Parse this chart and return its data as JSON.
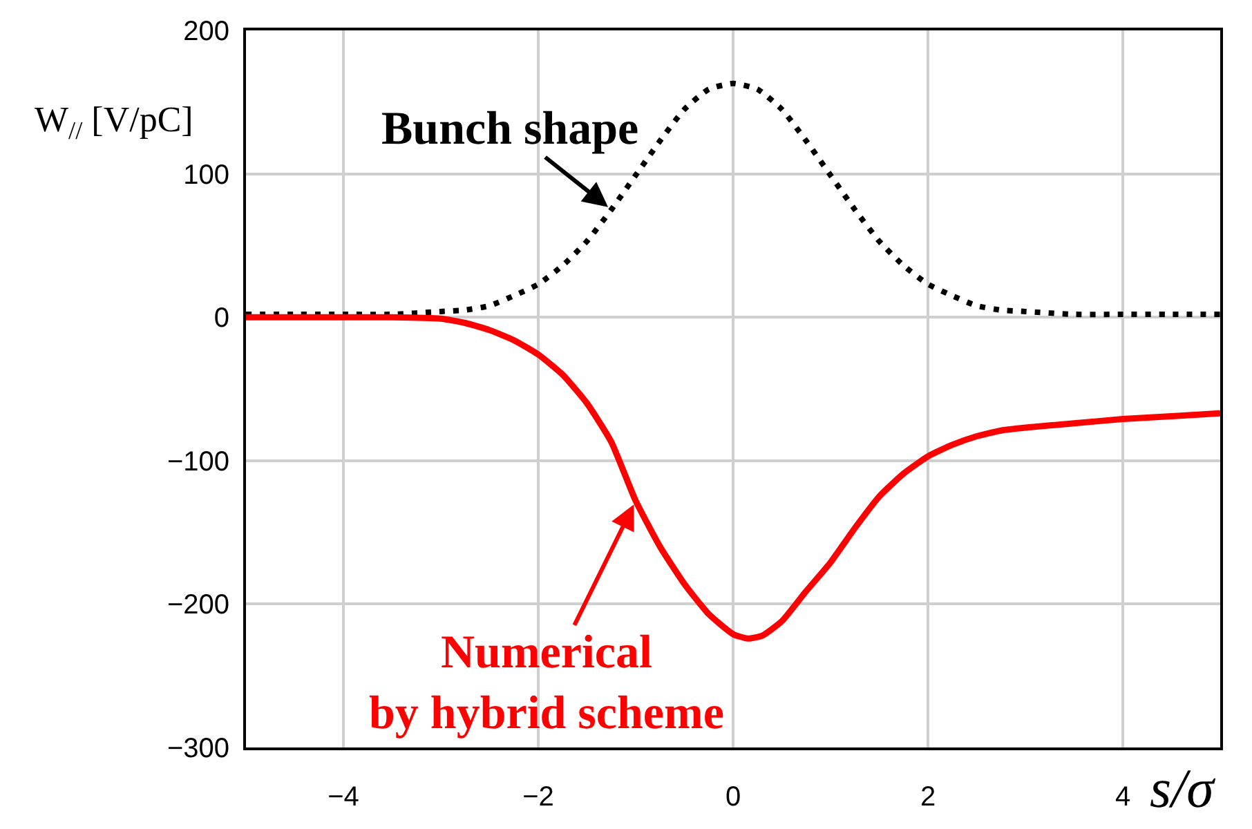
{
  "chart_data": {
    "type": "line",
    "xlabel": "s/σ",
    "ylabel": "W$_{//}$ [V/pC]",
    "xlim": [
      -5,
      5
    ],
    "ylim": [
      -300,
      200
    ],
    "xticks": [
      -4,
      -2,
      0,
      2,
      4
    ],
    "yticks": [
      -300,
      -200,
      -100,
      0,
      100,
      200
    ],
    "grid": true,
    "series": [
      {
        "color": "#000000",
        "line_style": "dotted",
        "x": [
          -5,
          -4.5,
          -4,
          -3.5,
          -3,
          -2.75,
          -2.5,
          -2.25,
          -2,
          -1.75,
          -1.5,
          -1.25,
          -1,
          -0.75,
          -0.5,
          -0.25,
          0,
          0.25,
          0.5,
          0.75,
          1,
          1.25,
          1.5,
          1.75,
          2,
          2.25,
          2.5,
          2.75,
          3,
          3.5,
          4,
          4.5,
          5
        ],
        "values": [
          2,
          2,
          2,
          2,
          4,
          5,
          8,
          15,
          23,
          36,
          53,
          75,
          99,
          123,
          145,
          159,
          163,
          159,
          145,
          123,
          99,
          75,
          53,
          36,
          23,
          15,
          8,
          5,
          4,
          2,
          2,
          2,
          2
        ]
      },
      {
        "color": "#ff0000",
        "line_style": "solid",
        "x": [
          -5,
          -4.5,
          -4,
          -3.5,
          -3,
          -2.75,
          -2.5,
          -2.25,
          -2,
          -1.75,
          -1.5,
          -1.25,
          -1,
          -0.75,
          -0.5,
          -0.25,
          0,
          0.15,
          0.3,
          0.5,
          0.75,
          1,
          1.25,
          1.5,
          1.75,
          2,
          2.25,
          2.5,
          2.75,
          3,
          3.5,
          4,
          4.5,
          5
        ],
        "values": [
          0,
          0,
          0,
          0,
          -1,
          -4,
          -9,
          -16,
          -26,
          -40,
          -60,
          -87,
          -128,
          -160,
          -186,
          -207,
          -221,
          -224,
          -222,
          -212,
          -191,
          -171,
          -147,
          -125,
          -109,
          -97,
          -89,
          -83,
          -79,
          -77,
          -74,
          -71,
          -69,
          -67
        ]
      }
    ],
    "annotations": [
      {
        "text": "Bunch shape",
        "x": -1.25,
        "y": 75
      },
      {
        "text": "Numerical\nby hybrid scheme",
        "x": -1,
        "y": -128
      }
    ]
  }
}
